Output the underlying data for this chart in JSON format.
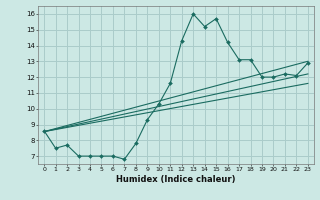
{
  "xlabel": "Humidex (Indice chaleur)",
  "bg_color": "#cce8e4",
  "grid_color": "#aaccca",
  "line_color": "#1a6b60",
  "xlim": [
    -0.5,
    23.5
  ],
  "ylim": [
    6.5,
    16.5
  ],
  "yticks": [
    7,
    8,
    9,
    10,
    11,
    12,
    13,
    14,
    15,
    16
  ],
  "xticks": [
    0,
    1,
    2,
    3,
    4,
    5,
    6,
    7,
    8,
    9,
    10,
    11,
    12,
    13,
    14,
    15,
    16,
    17,
    18,
    19,
    20,
    21,
    22,
    23
  ],
  "main_x": [
    0,
    1,
    2,
    3,
    4,
    5,
    6,
    7,
    8,
    9,
    10,
    11,
    12,
    13,
    14,
    15,
    16,
    17,
    18,
    19,
    20,
    21,
    22,
    23
  ],
  "main_y": [
    8.6,
    7.5,
    7.7,
    7.0,
    7.0,
    7.0,
    7.0,
    6.8,
    7.8,
    9.3,
    10.3,
    11.6,
    14.3,
    16.0,
    15.2,
    15.7,
    14.2,
    13.1,
    13.1,
    12.0,
    12.0,
    12.2,
    12.1,
    12.9
  ],
  "trend_lines": [
    {
      "x": [
        0,
        23
      ],
      "y": [
        8.55,
        13.0
      ]
    },
    {
      "x": [
        0,
        23
      ],
      "y": [
        8.55,
        12.2
      ]
    },
    {
      "x": [
        0,
        23
      ],
      "y": [
        8.55,
        11.6
      ]
    }
  ]
}
